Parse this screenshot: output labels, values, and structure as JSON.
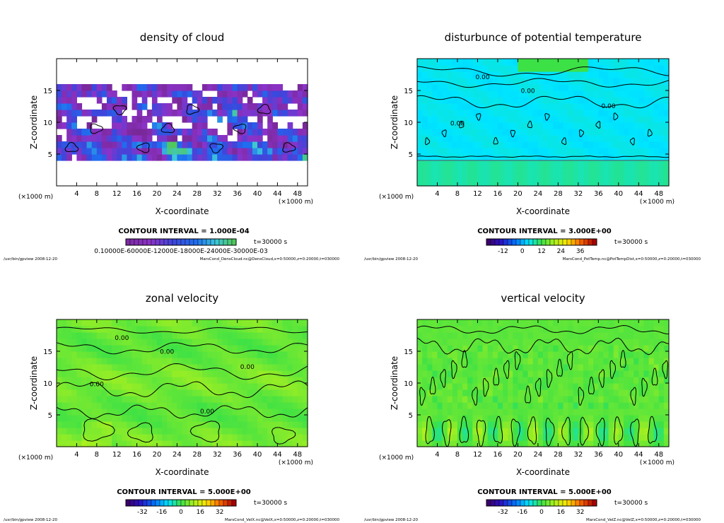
{
  "chart_data": [
    {
      "type": "heatmap",
      "title": "density of cloud",
      "xlabel": "X-coordinate",
      "ylabel": "Z-coordinate",
      "x_unit": "(×1000 m)",
      "y_unit": "(×1000 m)",
      "xlim": [
        0,
        50
      ],
      "ylim": [
        0,
        20
      ],
      "xticks": [
        "4",
        "8",
        "12",
        "16",
        "20",
        "24",
        "28",
        "32",
        "36",
        "40",
        "44",
        "48"
      ],
      "yticks": [
        "5",
        "10",
        "15"
      ],
      "contour_interval": "CONTOUR INTERVAL = 1.000E-04",
      "time_label": "t=30000 s",
      "colorbar_ticks": "0.10000E-60000E-12000E-18000E-24000E-30000E-03",
      "contour_labels": [],
      "footer_left": "/usr/bin/gpview   2008-12-20",
      "footer_right": "MarsCond_DensCloud.nc@DensCloud,x=0:50000,z=0:20000,t=030000",
      "colormap": "cloud",
      "field": "cloud"
    },
    {
      "type": "heatmap",
      "title": "disturbunce of potential temperature",
      "xlabel": "X-coordinate",
      "ylabel": "Z-coordinate",
      "x_unit": "(×1000 m)",
      "y_unit": "(×1000 m)",
      "xlim": [
        0,
        50
      ],
      "ylim": [
        0,
        20
      ],
      "xticks": [
        "4",
        "8",
        "12",
        "16",
        "20",
        "24",
        "28",
        "32",
        "36",
        "40",
        "44",
        "48"
      ],
      "yticks": [
        "5",
        "10",
        "15"
      ],
      "contour_interval": "CONTOUR INTERVAL = 3.000E+00",
      "time_label": "t=30000 s",
      "colorbar_ticks": [
        "-12",
        "0",
        "12",
        "24",
        "36"
      ],
      "contour_labels": [
        "0.00",
        "0.00",
        "0.00",
        "0.00"
      ],
      "footer_left": "/usr/bin/gpview   2008-12-20",
      "footer_right": "MarsCond_PotTemp.nc@PotTempDist,x=0:50000,z=0:20000,t=030000",
      "colormap": "rainbow",
      "field": "ptemp"
    },
    {
      "type": "heatmap",
      "title": "zonal velocity",
      "xlabel": "X-coordinate",
      "ylabel": "Z-coordinate",
      "x_unit": "(×1000 m)",
      "y_unit": "(×1000 m)",
      "xlim": [
        0,
        50
      ],
      "ylim": [
        0,
        20
      ],
      "xticks": [
        "4",
        "8",
        "12",
        "16",
        "20",
        "24",
        "28",
        "32",
        "36",
        "40",
        "44",
        "48"
      ],
      "yticks": [
        "5",
        "10",
        "15"
      ],
      "contour_interval": "CONTOUR INTERVAL = 5.000E+00",
      "time_label": "t=30000 s",
      "colorbar_ticks": [
        "-32",
        "-16",
        "0",
        "16",
        "32"
      ],
      "contour_labels": [
        "0.00",
        "0.00",
        "0.00",
        "0.00",
        "0.00"
      ],
      "footer_left": "/usr/bin/gpview   2008-12-20",
      "footer_right": "MarsCond_VelX.nc@VelX,x=0:50000,z=0:20000,t=030000",
      "colormap": "rainbow",
      "field": "velx"
    },
    {
      "type": "heatmap",
      "title": "vertical velocity",
      "xlabel": "X-coordinate",
      "ylabel": "Z-coordinate",
      "x_unit": "(×1000 m)",
      "y_unit": "(×1000 m)",
      "xlim": [
        0,
        50
      ],
      "ylim": [
        0,
        20
      ],
      "xticks": [
        "4",
        "8",
        "12",
        "16",
        "20",
        "24",
        "28",
        "32",
        "36",
        "40",
        "44",
        "48"
      ],
      "yticks": [
        "5",
        "10",
        "15"
      ],
      "contour_interval": "CONTOUR INTERVAL = 5.000E+00",
      "time_label": "t=30000 s",
      "colorbar_ticks": [
        "-32",
        "-16",
        "0",
        "16",
        "32"
      ],
      "contour_labels": [],
      "footer_left": "/usr/bin/gpview   2008-12-20",
      "footer_right": "MarsCond_VelZ.nc@VelZ,x=0:50000,z=0:20000,t=030000",
      "colormap": "rainbow",
      "field": "velz"
    }
  ]
}
